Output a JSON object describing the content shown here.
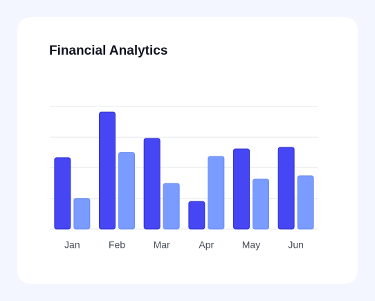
{
  "chart_data": {
    "type": "bar",
    "title": "Financial Analytics",
    "categories": [
      "Jan",
      "Feb",
      "Mar",
      "Apr",
      "May",
      "Jun"
    ],
    "series": [
      {
        "color": "#4646f5",
        "values": [
          2.33,
          3.82,
          2.96,
          0.9,
          2.62,
          2.67
        ]
      },
      {
        "color": "#7a9bff",
        "values": [
          1.0,
          2.5,
          1.49,
          2.37,
          1.63,
          1.74
        ]
      }
    ],
    "ylim": [
      0,
      4
    ],
    "yticks": [
      0,
      1,
      2,
      3,
      4
    ],
    "grid": true
  }
}
